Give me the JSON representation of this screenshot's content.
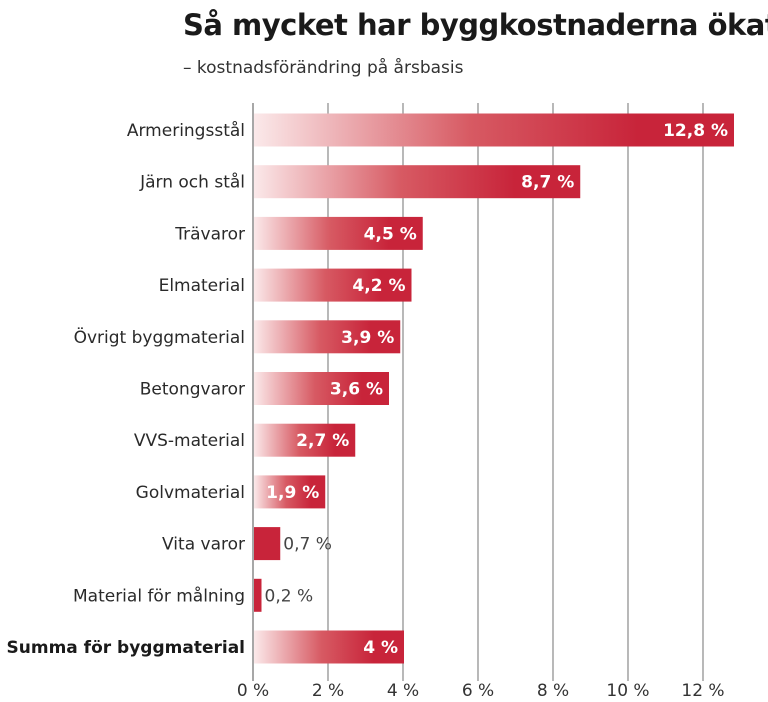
{
  "chart_data": {
    "type": "bar",
    "orientation": "horizontal",
    "title": "Så mycket har byggkostnaderna ökat",
    "subtitle": "– kostnadsförändring på årsbasis",
    "categories": [
      "Armeringsstål",
      "Järn och stål",
      "Trävaror",
      "Elmaterial",
      "Övrigt byggmaterial",
      "Betongvaror",
      "VVS-material",
      "Golvmaterial",
      "Vita varor",
      "Material för målning",
      "Summa för byggmaterial"
    ],
    "values": [
      12.8,
      8.7,
      4.5,
      4.2,
      3.9,
      3.6,
      2.7,
      1.9,
      0.7,
      0.2,
      4
    ],
    "value_labels": [
      "12,8 %",
      "8,7 %",
      "4,5 %",
      "4,2 %",
      "3,9 %",
      "3,6 %",
      "2,7 %",
      "1,9 %",
      "0,7 %",
      "0,2 %",
      "4 %"
    ],
    "bold_categories": [
      "Summa för byggmaterial"
    ],
    "xlim": [
      0,
      12.9
    ],
    "xticks": [
      0,
      2,
      4,
      6,
      8,
      10,
      12
    ],
    "xtick_labels": [
      "0 %",
      "2 %",
      "4 %",
      "6 %",
      "8 %",
      "10 %",
      "12 %"
    ],
    "xlabel": "",
    "ylabel": "",
    "grid": true,
    "legend": "none",
    "colors": {
      "bar": "#c8243a",
      "bar_fade": "#fbe9ea",
      "grid": "#8a8a8a"
    }
  }
}
